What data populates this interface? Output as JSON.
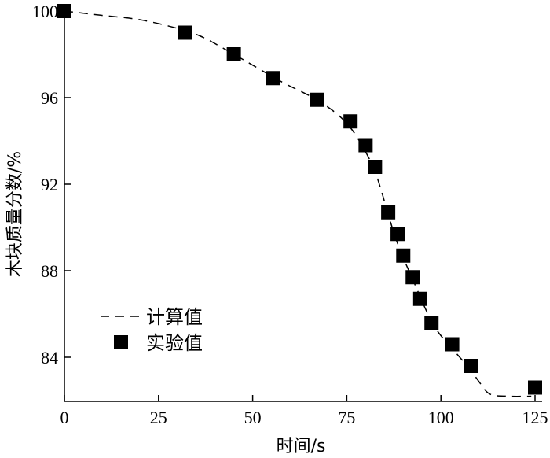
{
  "chart_data": {
    "type": "scatter",
    "title": "",
    "xlabel": "时间/s",
    "ylabel": "木块质量分数/%",
    "xlim": [
      0,
      127
    ],
    "ylim": [
      82,
      100.5
    ],
    "xticks": [
      0,
      25,
      50,
      75,
      100,
      125
    ],
    "yticks": [
      84,
      88,
      92,
      96,
      100
    ],
    "grid": false,
    "legend_position": "bottom-left",
    "series": [
      {
        "name": "计算值",
        "kind": "line",
        "style": "dashed",
        "color": "#000000",
        "x": [
          0,
          10,
          20,
          30,
          36,
          42,
          50,
          58,
          66,
          72,
          76,
          79,
          82,
          84,
          86,
          88,
          90,
          92,
          94,
          96,
          98,
          100,
          102,
          105,
          108,
          110,
          113,
          118,
          124
        ],
        "y": [
          100,
          99.8,
          99.6,
          99.2,
          98.85,
          98.3,
          97.5,
          96.7,
          96.0,
          95.3,
          94.6,
          93.8,
          92.8,
          91.8,
          90.6,
          89.5,
          88.6,
          87.8,
          87.0,
          86.2,
          85.5,
          85.0,
          84.6,
          84.0,
          83.4,
          82.9,
          82.3,
          82.2,
          82.2
        ]
      },
      {
        "name": "实验值",
        "kind": "scatter",
        "marker": "square",
        "color": "#000000",
        "x": [
          0,
          32,
          45,
          55.5,
          67,
          76,
          80,
          82.5,
          86,
          88.5,
          90,
          92.5,
          94.5,
          97.5,
          103,
          108,
          125
        ],
        "y": [
          100,
          99.0,
          98.0,
          96.9,
          95.9,
          94.9,
          93.8,
          92.8,
          90.7,
          89.7,
          88.7,
          87.7,
          86.7,
          85.6,
          84.6,
          83.6,
          82.6
        ]
      }
    ]
  }
}
